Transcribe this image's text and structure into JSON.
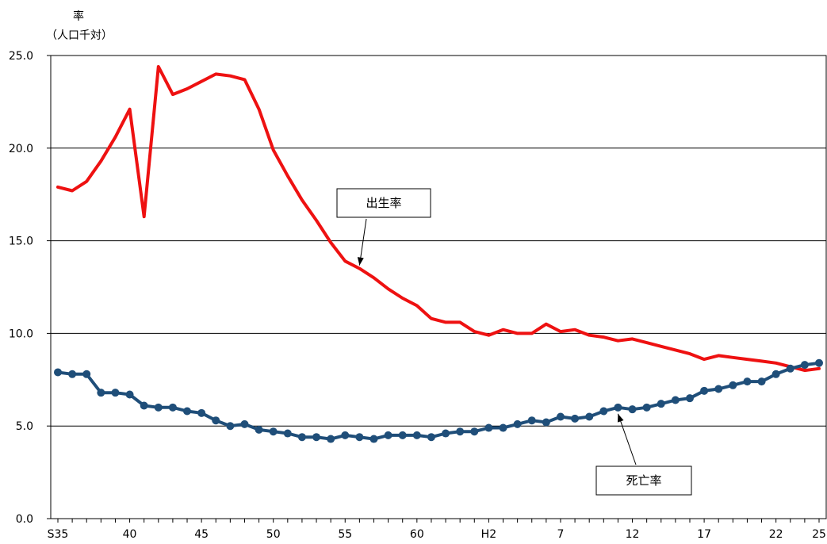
{
  "chart_data": {
    "type": "line",
    "ylabel": [
      "率",
      "（人口千対）"
    ],
    "ylim": [
      0,
      25
    ],
    "yticks": [
      "0.0",
      "5.0",
      "10.0",
      "15.0",
      "20.0",
      "25.0"
    ],
    "ytick_values": [
      0,
      5,
      10,
      15,
      20,
      25
    ],
    "grid": "horizontal",
    "x": [
      "S35",
      "36",
      "37",
      "38",
      "39",
      "40",
      "41",
      "42",
      "43",
      "44",
      "45",
      "46",
      "47",
      "48",
      "49",
      "50",
      "51",
      "52",
      "53",
      "54",
      "55",
      "56",
      "57",
      "58",
      "59",
      "60",
      "61",
      "62",
      "63",
      "H1",
      "H2",
      "3",
      "4",
      "5",
      "6",
      "7",
      "8",
      "9",
      "10",
      "11",
      "12",
      "13",
      "14",
      "15",
      "16",
      "17",
      "18",
      "19",
      "20",
      "21",
      "22",
      "23",
      "24",
      "25"
    ],
    "xtick_labels": [
      {
        "index": 0,
        "label": "S35"
      },
      {
        "index": 5,
        "label": "40"
      },
      {
        "index": 10,
        "label": "45"
      },
      {
        "index": 15,
        "label": "50"
      },
      {
        "index": 20,
        "label": "55"
      },
      {
        "index": 25,
        "label": "60"
      },
      {
        "index": 30,
        "label": "H2"
      },
      {
        "index": 35,
        "label": "7"
      },
      {
        "index": 40,
        "label": "12"
      },
      {
        "index": 45,
        "label": "17"
      },
      {
        "index": 50,
        "label": "22"
      },
      {
        "index": 53,
        "label": "25"
      }
    ],
    "series": [
      {
        "name": "出生率",
        "color": "#ee1111",
        "markers": false,
        "values": [
          17.9,
          17.7,
          18.2,
          19.3,
          20.6,
          22.1,
          16.3,
          24.4,
          22.9,
          23.2,
          23.6,
          24.0,
          23.9,
          23.7,
          22.1,
          19.9,
          18.5,
          17.2,
          16.1,
          14.9,
          13.9,
          13.5,
          13.0,
          12.4,
          11.9,
          11.5,
          10.8,
          10.6,
          10.6,
          10.1,
          9.9,
          10.2,
          10.0,
          10.0,
          10.5,
          10.1,
          10.2,
          9.9,
          9.8,
          9.6,
          9.7,
          9.5,
          9.3,
          9.1,
          8.9,
          8.6,
          8.8,
          8.7,
          8.6,
          8.5,
          8.4,
          8.2,
          8.0,
          8.1
        ]
      },
      {
        "name": "死亡率",
        "color": "#1f4e79",
        "markers": true,
        "values": [
          7.9,
          7.8,
          7.8,
          6.8,
          6.8,
          6.7,
          6.1,
          6.0,
          6.0,
          5.8,
          5.7,
          5.3,
          5.0,
          5.1,
          4.8,
          4.7,
          4.6,
          4.4,
          4.4,
          4.3,
          4.5,
          4.4,
          4.3,
          4.5,
          4.5,
          4.5,
          4.4,
          4.6,
          4.7,
          4.7,
          4.9,
          4.9,
          5.1,
          5.3,
          5.2,
          5.5,
          5.4,
          5.5,
          5.8,
          6.0,
          5.9,
          6.0,
          6.2,
          6.4,
          6.5,
          6.9,
          7.0,
          7.2,
          7.4,
          7.4,
          7.8,
          8.1,
          8.3,
          8.4
        ]
      }
    ],
    "annotations": [
      {
        "label": "出生率",
        "series": 0,
        "target_index": 21
      },
      {
        "label": "死亡率",
        "series": 1,
        "target_index": 39
      }
    ]
  }
}
